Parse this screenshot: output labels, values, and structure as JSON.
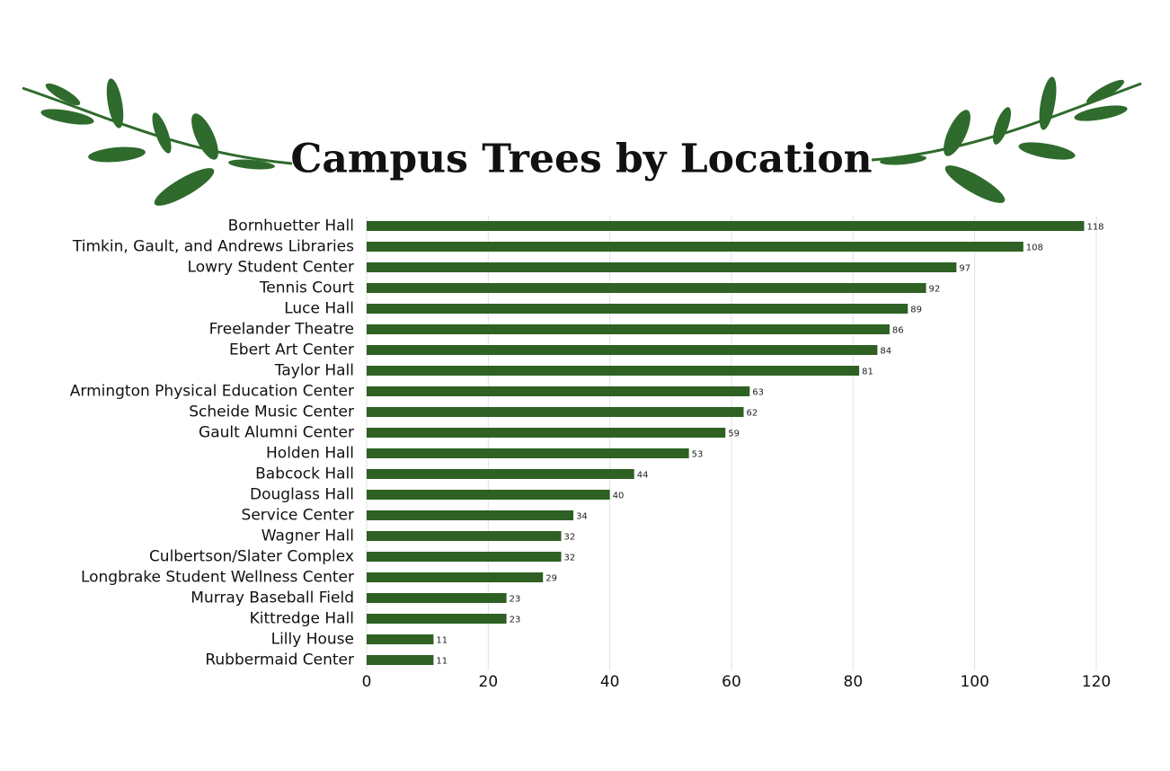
{
  "chart_data": {
    "type": "bar",
    "orientation": "horizontal",
    "title": "Campus Trees by Location",
    "categories": [
      "Bornhuetter Hall",
      "Timkin, Gault, and Andrews Libraries",
      "Lowry Student Center",
      "Tennis Court",
      "Luce Hall",
      "Freelander Theatre",
      "Ebert Art Center",
      "Taylor Hall",
      "Armington Physical Education Center",
      "Scheide Music Center",
      "Gault Alumni Center",
      "Holden Hall",
      "Babcock Hall",
      "Douglass Hall",
      "Service Center",
      "Wagner Hall",
      "Culbertson/Slater Complex",
      "Longbrake Student Wellness Center",
      "Murray Baseball Field",
      "Kittredge Hall",
      "Lilly House",
      "Rubbermaid Center"
    ],
    "values": [
      118,
      108,
      97,
      92,
      89,
      86,
      84,
      81,
      63,
      62,
      59,
      53,
      44,
      40,
      34,
      32,
      32,
      29,
      23,
      23,
      11,
      11
    ],
    "color": "#2e6123",
    "xlim": [
      0,
      120
    ],
    "xticks": [
      0,
      20,
      40,
      60,
      80,
      100,
      120
    ],
    "grid": true
  }
}
